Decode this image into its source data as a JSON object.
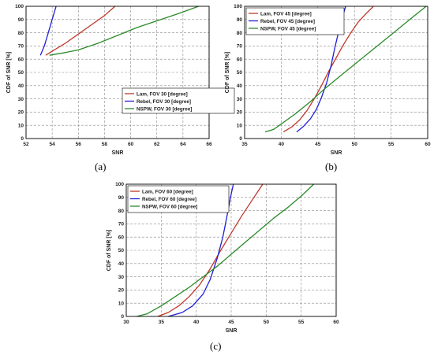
{
  "chart_data": [
    {
      "type": "line",
      "panel_label": "(a)",
      "xlabel": "SNR",
      "ylabel": "CDF of SNR [%]",
      "xlim": [
        52,
        66
      ],
      "ylim": [
        0,
        100
      ],
      "xticks": [
        52,
        54,
        56,
        58,
        60,
        62,
        64,
        66
      ],
      "yticks": [
        0,
        10,
        20,
        30,
        40,
        50,
        60,
        70,
        80,
        90,
        100
      ],
      "grid": true,
      "legend_position": "center-right",
      "series": [
        {
          "name": "Lam, FOV 30 [degree]",
          "color": "#c0392b",
          "points": [
            [
              53.5,
              63
            ],
            [
              54.0,
              66
            ],
            [
              55.0,
              72
            ],
            [
              56.0,
              79
            ],
            [
              57.0,
              86
            ],
            [
              58.0,
              93
            ],
            [
              58.8,
              100
            ]
          ]
        },
        {
          "name": "Rebel, FOV 30 [degree]",
          "color": "#1f1fd6",
          "points": [
            [
              53.1,
              63
            ],
            [
              53.4,
              70
            ],
            [
              53.7,
              80
            ],
            [
              54.0,
              90
            ],
            [
              54.3,
              100
            ]
          ]
        },
        {
          "name": "NSPW, FOV 30 [degree]",
          "color": "#2a8a2a",
          "points": [
            [
              53.8,
              63
            ],
            [
              55.0,
              65
            ],
            [
              56.0,
              67
            ],
            [
              57.5,
              72
            ],
            [
              59.0,
              78
            ],
            [
              60.5,
              84
            ],
            [
              62.0,
              89
            ],
            [
              63.5,
              94
            ],
            [
              65.2,
              100
            ]
          ]
        }
      ]
    },
    {
      "type": "line",
      "panel_label": "(b)",
      "xlabel": "SNR",
      "ylabel": "CDF of SNR [%]",
      "xlim": [
        35,
        60
      ],
      "ylim": [
        0,
        100
      ],
      "xticks": [
        35,
        40,
        45,
        50,
        55,
        60
      ],
      "yticks": [
        0,
        10,
        20,
        30,
        40,
        50,
        60,
        70,
        80,
        90,
        100
      ],
      "grid": true,
      "legend_position": "top-left",
      "series": [
        {
          "name": "Lam, FOV 45 [degree]",
          "color": "#c0392b",
          "points": [
            [
              40.3,
              5
            ],
            [
              41.5,
              9
            ],
            [
              42.5,
              14
            ],
            [
              43.5,
              21
            ],
            [
              44.5,
              30
            ],
            [
              45.5,
              40
            ],
            [
              46.5,
              51
            ],
            [
              47.5,
              61
            ],
            [
              48.5,
              71
            ],
            [
              49.5,
              80
            ],
            [
              50.5,
              88
            ],
            [
              51.5,
              94
            ],
            [
              52.6,
              100
            ]
          ]
        },
        {
          "name": "Rebel, FOV 45 [degree]",
          "color": "#1f1fd6",
          "points": [
            [
              42.1,
              5
            ],
            [
              43.0,
              9
            ],
            [
              44.0,
              15
            ],
            [
              44.8,
              22
            ],
            [
              45.5,
              31
            ],
            [
              46.2,
              42
            ],
            [
              46.8,
              55
            ],
            [
              47.3,
              68
            ],
            [
              47.8,
              80
            ],
            [
              48.3,
              91
            ],
            [
              48.8,
              100
            ]
          ]
        },
        {
          "name": "NSPW, FOV 45 [degree]",
          "color": "#2a8a2a",
          "points": [
            [
              37.8,
              5
            ],
            [
              39.0,
              7
            ],
            [
              40.0,
              11
            ],
            [
              42.0,
              19
            ],
            [
              44.0,
              28
            ],
            [
              46.0,
              38
            ],
            [
              48.0,
              47
            ],
            [
              50.0,
              56
            ],
            [
              52.0,
              65
            ],
            [
              54.0,
              74
            ],
            [
              56.0,
              83
            ],
            [
              58.0,
              92
            ],
            [
              59.8,
              100
            ]
          ]
        }
      ]
    },
    {
      "type": "line",
      "panel_label": "(c)",
      "xlabel": "SNR",
      "ylabel": "CDF of SNR [%]",
      "xlim": [
        30,
        60
      ],
      "ylim": [
        0,
        100
      ],
      "xticks": [
        30,
        35,
        40,
        45,
        50,
        55,
        60
      ],
      "yticks": [
        0,
        10,
        20,
        30,
        40,
        50,
        60,
        70,
        80,
        90,
        100
      ],
      "grid": true,
      "legend_position": "top-left",
      "series": [
        {
          "name": "Lam, FOV 60 [degree]",
          "color": "#c0392b",
          "points": [
            [
              34.5,
              0
            ],
            [
              36.0,
              3
            ],
            [
              37.5,
              8
            ],
            [
              39.0,
              15
            ],
            [
              40.5,
              24
            ],
            [
              42.0,
              36
            ],
            [
              43.5,
              50
            ],
            [
              45.0,
              63
            ],
            [
              46.5,
              76
            ],
            [
              48.0,
              88
            ],
            [
              49.5,
              100
            ]
          ]
        },
        {
          "name": "Rebel, FOV 60 [degree]",
          "color": "#1f1fd6",
          "points": [
            [
              36.0,
              0
            ],
            [
              38.0,
              3
            ],
            [
              39.5,
              8
            ],
            [
              41.0,
              17
            ],
            [
              42.0,
              28
            ],
            [
              43.0,
              44
            ],
            [
              43.8,
              60
            ],
            [
              44.4,
              76
            ],
            [
              44.9,
              90
            ],
            [
              45.3,
              100
            ]
          ]
        },
        {
          "name": "NSPW, FOV 60 [degree]",
          "color": "#2a8a2a",
          "points": [
            [
              31.5,
              0
            ],
            [
              33.0,
              2
            ],
            [
              35.0,
              8
            ],
            [
              37.0,
              15
            ],
            [
              39.0,
              22
            ],
            [
              41.0,
              30
            ],
            [
              43.0,
              38
            ],
            [
              45.0,
              47
            ],
            [
              47.0,
              56
            ],
            [
              49.0,
              65
            ],
            [
              51.0,
              74
            ],
            [
              53.0,
              82
            ],
            [
              55.0,
              91
            ],
            [
              56.8,
              100
            ]
          ]
        }
      ]
    }
  ]
}
